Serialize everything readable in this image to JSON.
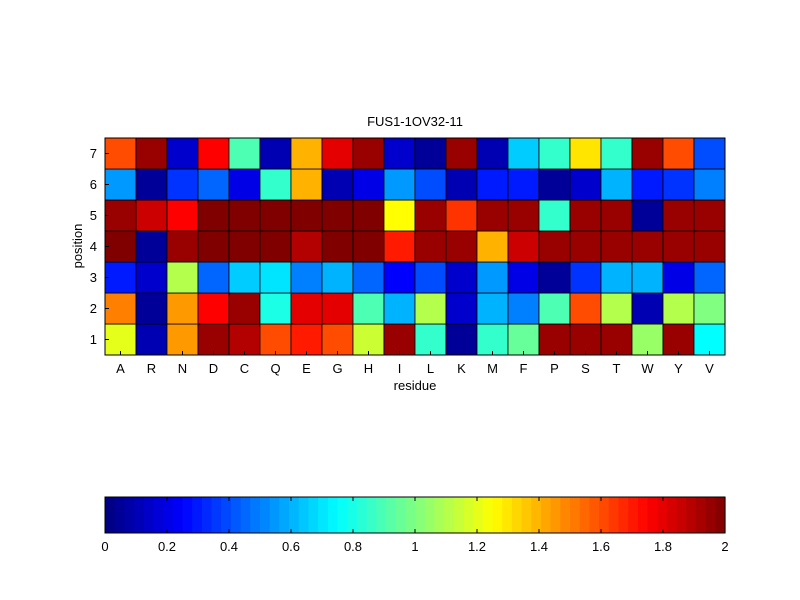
{
  "chart_data": {
    "type": "heatmap",
    "title": "FUS1-1OV32-11",
    "xlabel": "residue",
    "ylabel": "position",
    "x_categories": [
      "A",
      "R",
      "N",
      "D",
      "C",
      "Q",
      "E",
      "G",
      "H",
      "I",
      "L",
      "K",
      "M",
      "F",
      "P",
      "S",
      "T",
      "W",
      "Y",
      "V"
    ],
    "y_categories": [
      "1",
      "2",
      "3",
      "4",
      "5",
      "6",
      "7"
    ],
    "values": [
      [
        1.2,
        0.1,
        1.45,
        1.95,
        1.9,
        1.6,
        1.7,
        1.6,
        1.15,
        1.95,
        0.85,
        0.05,
        0.85,
        0.95,
        1.95,
        1.95,
        1.95,
        1.05,
        1.95,
        0.75
      ],
      [
        1.5,
        0.05,
        1.45,
        1.75,
        1.95,
        0.8,
        1.8,
        1.8,
        0.9,
        0.6,
        1.1,
        0.15,
        0.6,
        0.5,
        0.9,
        1.6,
        1.1,
        0.1,
        1.1,
        1.0
      ],
      [
        0.3,
        0.15,
        1.1,
        0.45,
        0.65,
        0.7,
        0.5,
        0.6,
        0.45,
        0.25,
        0.4,
        0.15,
        0.55,
        0.2,
        0.05,
        0.35,
        0.6,
        0.6,
        0.2,
        0.45
      ],
      [
        2.0,
        0.05,
        1.95,
        2.0,
        2.0,
        2.0,
        1.9,
        2.0,
        2.0,
        1.7,
        1.95,
        1.95,
        1.4,
        1.85,
        1.95,
        1.95,
        1.95,
        1.95,
        1.95,
        1.95
      ],
      [
        1.95,
        1.85,
        1.75,
        2.0,
        2.0,
        2.0,
        2.0,
        2.0,
        2.0,
        1.25,
        1.95,
        1.65,
        1.95,
        1.95,
        0.85,
        1.95,
        1.95,
        0.05,
        1.95,
        1.95
      ],
      [
        0.55,
        0.05,
        0.35,
        0.45,
        0.2,
        0.85,
        1.4,
        0.1,
        0.2,
        0.55,
        0.4,
        0.1,
        0.3,
        0.3,
        0.05,
        0.15,
        0.6,
        0.3,
        0.35,
        0.5
      ],
      [
        1.6,
        1.95,
        0.15,
        1.75,
        0.9,
        0.1,
        1.4,
        1.8,
        1.95,
        0.15,
        0.05,
        1.95,
        0.1,
        0.65,
        0.85,
        1.3,
        0.85,
        1.95,
        1.6,
        0.4
      ]
    ],
    "colorbar": {
      "min": 0,
      "max": 2,
      "tick_labels": [
        "0",
        "0.2",
        "0.4",
        "0.6",
        "0.8",
        "1",
        "1.2",
        "1.4",
        "1.6",
        "1.8",
        "2"
      ],
      "colormap": "jet",
      "location": "bottom"
    },
    "grid": false
  }
}
